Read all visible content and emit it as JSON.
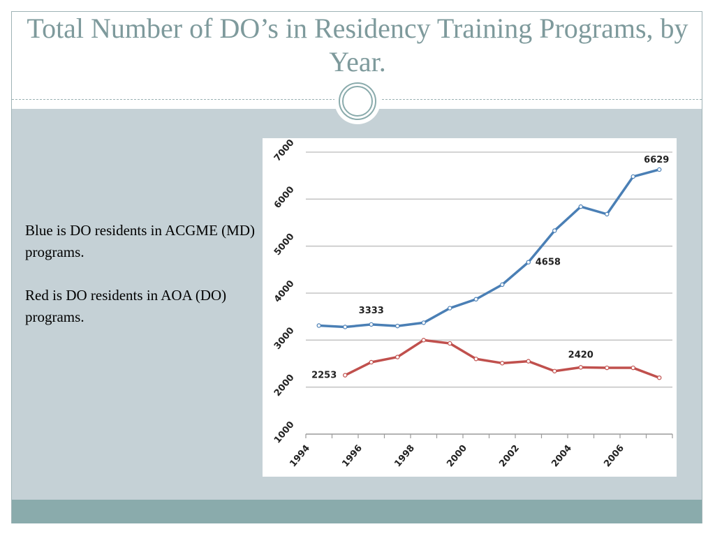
{
  "slide": {
    "title": "Total Number of DO’s in Residency Training Programs, by Year.",
    "body": [
      "Blue is DO residents in ACGME (MD) programs.",
      "Red is DO residents in AOA (DO) programs."
    ]
  },
  "colors": {
    "blue_series": "#4a7fb5",
    "red_series": "#c0504d",
    "title": "#7e9a9c",
    "content_bg": "#c5d1d6",
    "footer_band": "#8aabac"
  },
  "chart_data": {
    "type": "line",
    "title": "",
    "xlabel": "",
    "ylabel": "",
    "ylim": [
      1000,
      7000
    ],
    "xlim": [
      1994,
      2008
    ],
    "y_ticks": [
      "1000",
      "2000",
      "3000",
      "4000",
      "5000",
      "6000",
      "7000"
    ],
    "x_ticks": [
      "1994",
      "1996",
      "1998",
      "2000",
      "2002",
      "2004",
      "2006"
    ],
    "grid": "horizontal",
    "series": [
      {
        "color": "#4a7fb5",
        "x": [
          1994.5,
          1995.5,
          1996.5,
          1997.5,
          1998.5,
          1999.5,
          2000.5,
          2001.5,
          2002.5,
          2003.5,
          2004.5,
          2005.5,
          2006.5,
          2007.5
        ],
        "values": [
          3310,
          3280,
          3333,
          3300,
          3370,
          3680,
          3870,
          4180,
          4658,
          5330,
          5840,
          5680,
          6480,
          6629
        ]
      },
      {
        "color": "#c0504d",
        "x": [
          1995.5,
          1996.5,
          1997.5,
          1998.5,
          1999.5,
          2000.5,
          2001.5,
          2002.5,
          2003.5,
          2004.5,
          2005.5,
          2006.5,
          2007.5
        ],
        "values": [
          2253,
          2530,
          2640,
          3000,
          2930,
          2600,
          2510,
          2550,
          2340,
          2420,
          2410,
          2410,
          2200
        ]
      }
    ],
    "annotations": [
      {
        "text": "3333",
        "series": 0,
        "point": 2,
        "side": "above"
      },
      {
        "text": "4658",
        "series": 0,
        "point": 8,
        "side": "right"
      },
      {
        "text": "6629",
        "series": 0,
        "point": 13,
        "side": "above-left"
      },
      {
        "text": "2253",
        "series": 1,
        "point": 0,
        "side": "left"
      },
      {
        "text": "2420",
        "series": 1,
        "point": 9,
        "side": "above"
      }
    ]
  }
}
